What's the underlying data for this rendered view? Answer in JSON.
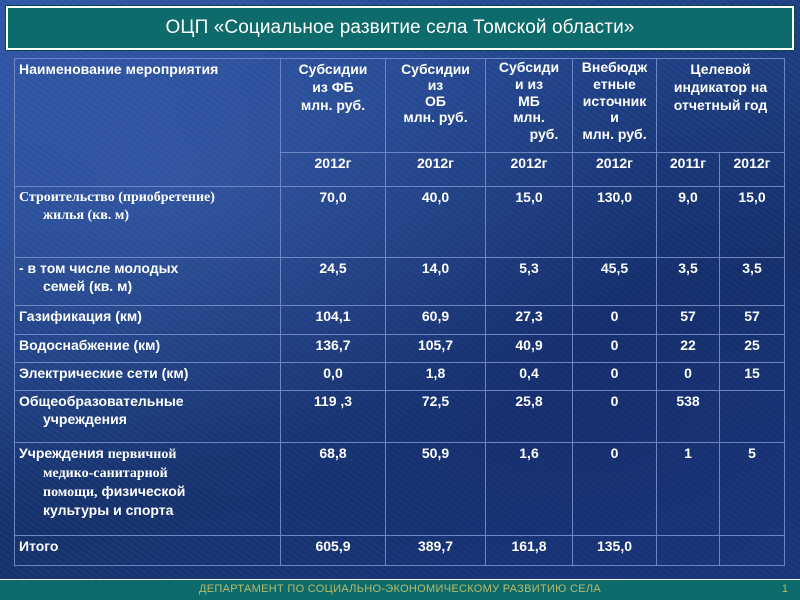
{
  "title": "ОЦП «Социальное развитие села Томской области»",
  "table": {
    "header": {
      "name": "Наименование мероприятия",
      "fb": [
        "Субсидии",
        "из ФБ",
        "млн. руб."
      ],
      "ob": [
        "Субсидии",
        "из",
        "ОБ",
        "млн. руб."
      ],
      "mb": [
        "Субсиди",
        "и из",
        "МБ",
        "млн.",
        "руб."
      ],
      "vb": [
        "Внебюдж",
        "етные",
        "источник",
        "и",
        "млн. руб."
      ],
      "target": [
        "Целевой",
        "индикатор на",
        "отчетный год"
      ]
    },
    "years": [
      "2012г",
      "2012г",
      "2012г",
      "2012г",
      "2011г",
      "2012г"
    ],
    "rows": [
      {
        "name": [
          "Строительство (приобретение)",
          "жилья (кв. м)"
        ],
        "fb": "70,0",
        "ob": "40,0",
        "mb": "15,0",
        "vb": "130,0",
        "t2011": "9,0",
        "t2012": "15,0"
      },
      {
        "name": [
          "- в том числе молодых",
          "семей  (кв. м)"
        ],
        "fb": "24,5",
        "ob": "14,0",
        "mb": "5,3",
        "vb": "45,5",
        "t2011": "3,5",
        "t2012": "3,5"
      },
      {
        "name": [
          "Газификация (км)"
        ],
        "fb": "104,1",
        "ob": "60,9",
        "mb": "27,3",
        "vb": "0",
        "t2011": "57",
        "t2012": "57"
      },
      {
        "name": [
          "Водоснабжение (км)"
        ],
        "fb": "136,7",
        "ob": "105,7",
        "mb": "40,9",
        "vb": "0",
        "t2011": "22",
        "t2012": "25"
      },
      {
        "name": [
          "Электрические сети (км)"
        ],
        "fb": "0,0",
        "ob": "1,8",
        "mb": "0,4",
        "vb": "0",
        "t2011": "0",
        "t2012": "15"
      },
      {
        "name": [
          "Общеобразовательные",
          "учреждения"
        ],
        "fb": "119 ,3",
        "ob": "72,5",
        "mb": "25,8",
        "vb": "0",
        "t2011": "538",
        "t2012": ""
      },
      {
        "name": [
          "Учреждения",
          "первичной",
          "медико-санитарной",
          "помощи,",
          "физической",
          "культуры и спорта"
        ],
        "fb": "68,8",
        "ob": "50,9",
        "mb": "1,6",
        "vb": "0",
        "t2011": "1",
        "t2012": "5"
      }
    ],
    "total": {
      "name": "Итого",
      "fb": "605,9",
      "ob": "389,7",
      "mb": "161,8",
      "vb": "135,0",
      "t2011": "",
      "t2012": ""
    }
  },
  "footer": {
    "department": "ДЕПАРТАМЕНТ ПО СОЦИАЛЬНО-ЭКОНОМИЧЕСКОМУ РАЗВИТИЮ СЕЛА",
    "page_number": "1"
  },
  "colors": {
    "title_bar": "#0e6b6b",
    "background": "#1d3f8a",
    "footer_text": "#b7bb6a"
  }
}
